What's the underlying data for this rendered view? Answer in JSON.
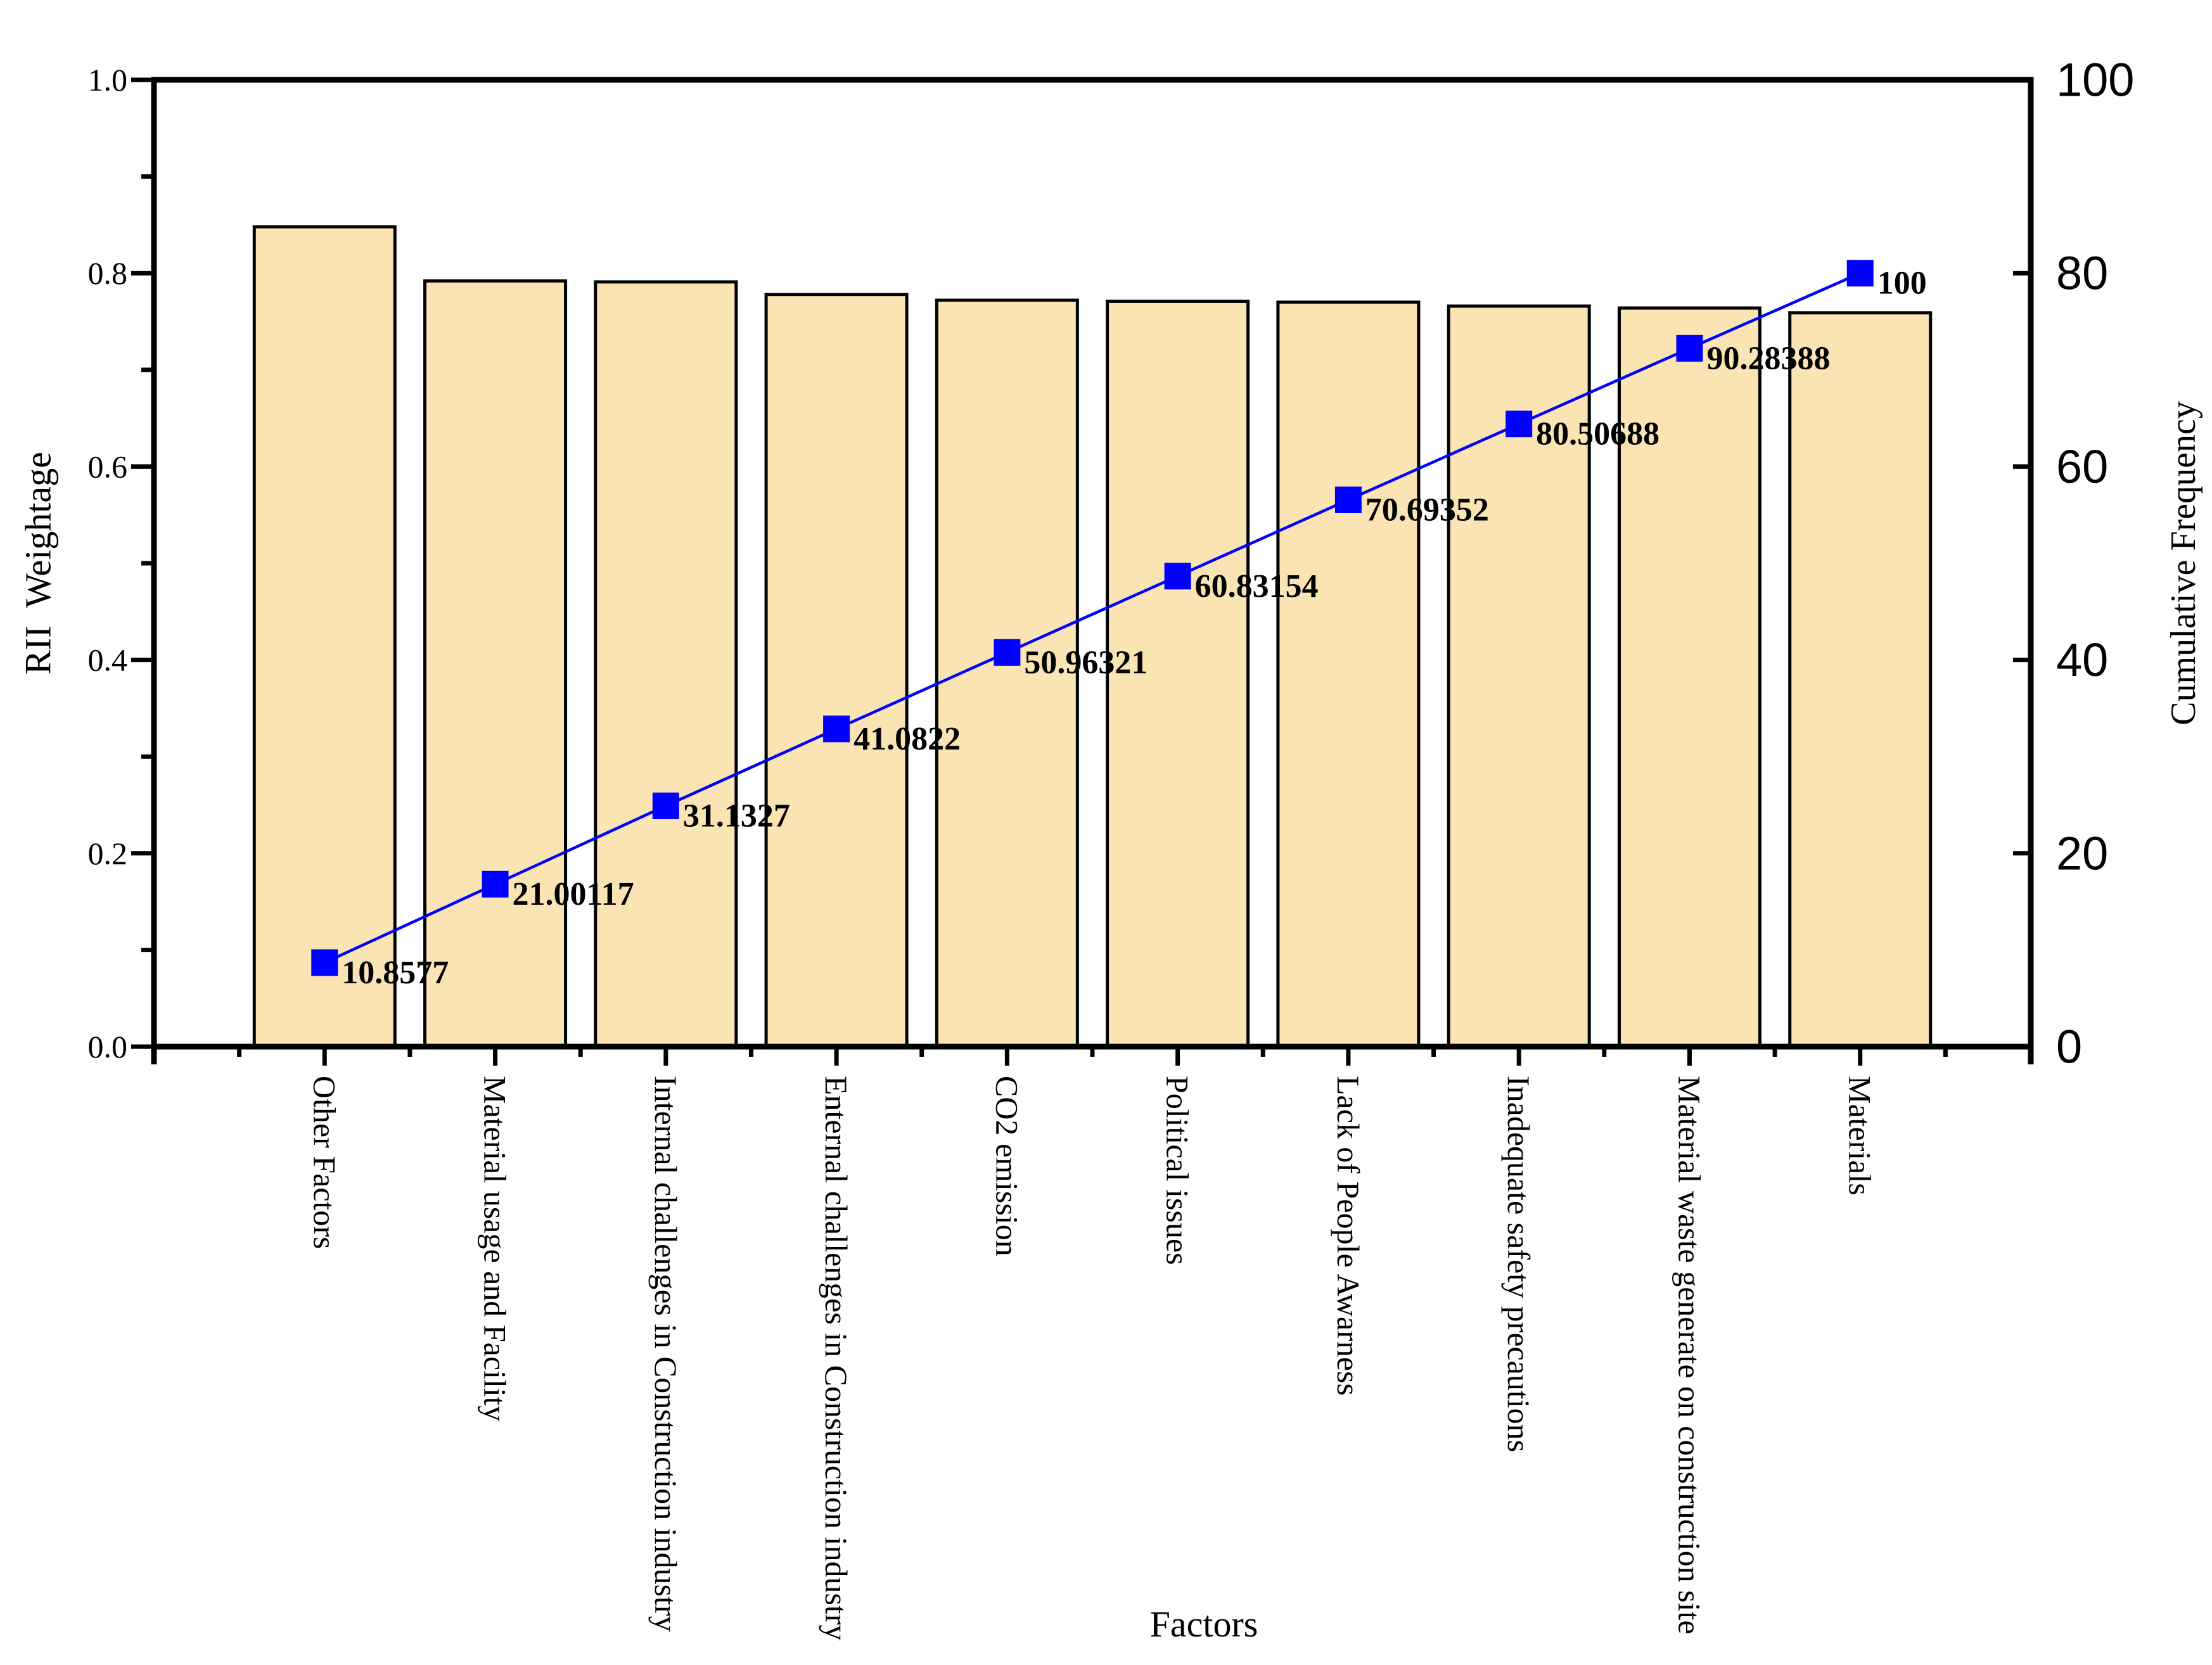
{
  "chart_data": {
    "type": "bar",
    "subtype": "pareto-combo (bar + cumulative line)",
    "title": "",
    "categories": [
      "Other Factors",
      "Material usage and Facility",
      "Internal challenges in Construction industry",
      "Enternal challenges in Construction industry",
      "CO2 emission",
      "Political issues",
      "Lack of People Awarness",
      "Inadequate safety precautions",
      "Material waste generate on construction site",
      "Materials"
    ],
    "series": [
      {
        "name": "RII Weightage",
        "type": "bar",
        "axis": "left",
        "values": [
          0.848,
          0.792,
          0.791,
          0.778,
          0.772,
          0.771,
          0.77,
          0.766,
          0.764,
          0.759
        ]
      },
      {
        "name": "Cumulative Frequency",
        "type": "line",
        "axis": "right",
        "marker": "square",
        "values": [
          10.8577,
          21.00117,
          31.1327,
          41.0822,
          50.96321,
          60.83154,
          70.69352,
          80.50688,
          90.28388,
          100
        ],
        "point_labels": [
          "10.8577",
          "21.00117",
          "31.1327",
          "41.0822",
          "50.96321",
          "60.83154",
          "70.69352",
          "80.50688",
          "90.28388",
          "100"
        ]
      }
    ],
    "xlabel": "Factors",
    "ylabel_left": "RII  Weightage",
    "ylabel_right": "Cumulative Frequency",
    "left_axis": {
      "min": 0.0,
      "max": 1.0,
      "tick_labels": [
        "0.0",
        "0.2",
        "0.4",
        "0.6",
        "0.8",
        "1.0"
      ],
      "minor_step": 0.1
    },
    "right_axis": {
      "min": 0,
      "max": 100,
      "tick_labels": [
        "0",
        "20",
        "40",
        "60",
        "80",
        "100"
      ]
    },
    "layout": {
      "grid": false,
      "legend": "none",
      "x_tick_label_rotation_deg": 90,
      "cumulative_line_display_max": 125,
      "bar_fill": "#fbe4b4",
      "bar_edge": "#000000",
      "line_color": "#0000ff",
      "marker_color": "#0000ff",
      "text_color": "#000000",
      "background": "#ffffff"
    }
  }
}
